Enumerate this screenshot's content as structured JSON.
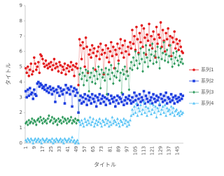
{
  "chart_data": {
    "type": "line",
    "x_label": "タイトル",
    "y_label": "タイトル",
    "ylim": [
      0,
      9
    ],
    "yticks": [
      0,
      1,
      2,
      3,
      4,
      5,
      6,
      7,
      8,
      9
    ],
    "legend": "right",
    "grid": false,
    "categories": [
      "1",
      null,
      null,
      null,
      null,
      null,
      null,
      null,
      "9",
      null,
      null,
      null,
      null,
      null,
      null,
      null,
      "17",
      null,
      null,
      null,
      null,
      null,
      null,
      null,
      "25",
      null,
      null,
      null,
      null,
      null,
      null,
      null,
      "33",
      null,
      null,
      null,
      null,
      null,
      null,
      null,
      "41",
      null,
      null,
      null,
      null,
      null,
      null,
      null,
      "49",
      null,
      null,
      null,
      null,
      null,
      null,
      null,
      "57",
      null,
      null,
      null,
      null,
      null,
      null,
      null,
      "65",
      null,
      null,
      null,
      null,
      null,
      null,
      null,
      "73",
      null,
      null,
      null,
      null,
      null,
      null,
      null,
      "81",
      null,
      null,
      null,
      null,
      null,
      null,
      null,
      "89",
      null,
      null,
      null,
      null,
      null,
      null,
      null,
      "97",
      null,
      null,
      null,
      null,
      null,
      null,
      null,
      "105",
      null,
      null,
      null,
      null,
      null,
      null,
      null,
      "113",
      null,
      null,
      null,
      null,
      null,
      null,
      null,
      "121",
      null,
      null,
      null,
      null,
      null,
      null,
      null,
      "129",
      null,
      null,
      null,
      null,
      null,
      null,
      null,
      "137",
      null,
      null,
      null,
      null,
      null,
      null,
      null,
      "145",
      null,
      null,
      null,
      null,
      null
    ],
    "series": [
      {
        "name": "系列1",
        "color": "#e31a1c",
        "marker": "circle",
        "values": [
          4.9,
          4.6,
          5.0,
          4.4,
          4.8,
          5.2,
          4.5,
          4.7,
          5.6,
          5.2,
          4.8,
          5.0,
          5.3,
          4.6,
          5.8,
          5.7,
          5.5,
          5.2,
          5.0,
          5.4,
          5.1,
          4.9,
          5.2,
          5.0,
          5.3,
          4.8,
          5.1,
          5.5,
          4.9,
          5.2,
          5.0,
          4.7,
          5.3,
          5.1,
          4.6,
          5.0,
          4.8,
          5.2,
          4.5,
          4.9,
          5.1,
          4.7,
          5.0,
          5.3,
          4.8,
          5.1,
          4.4,
          5.0,
          5.2,
          4.9,
          3.8,
          6.8,
          6.4,
          5.5,
          6.6,
          6.2,
          5.0,
          6.9,
          6.3,
          4.6,
          5.8,
          6.1,
          5.6,
          6.4,
          5.9,
          6.2,
          4.8,
          5.7,
          6.0,
          6.3,
          5.5,
          6.5,
          5.8,
          6.1,
          4.5,
          5.9,
          6.4,
          5.6,
          6.2,
          5.3,
          6.0,
          6.6,
          5.7,
          6.3,
          4.9,
          6.1,
          5.8,
          6.5,
          5.4,
          6.2,
          6.8,
          5.9,
          6.4,
          5.6,
          6.7,
          6.0,
          4.7,
          6.3,
          5.8,
          6.6,
          6.2,
          7.4,
          6.5,
          7.0,
          6.1,
          7.6,
          6.8,
          5.9,
          7.2,
          6.6,
          7.7,
          6.3,
          7.5,
          6.9,
          5.8,
          7.1,
          6.7,
          7.8,
          6.4,
          7.0,
          6.2,
          7.3,
          6.8,
          5.6,
          7.6,
          6.5,
          7.1,
          6.9,
          7.9,
          6.3,
          7.4,
          6.7,
          6.0,
          7.2,
          6.8,
          7.5,
          6.4,
          7.0,
          5.7,
          6.9,
          6.6,
          7.3,
          6.2,
          6.8,
          6.5,
          6.1,
          6.7,
          6.3,
          6.0,
          5.9
        ]
      },
      {
        "name": "系列2",
        "color": "#1f3fe0",
        "marker": "square",
        "values": [
          3.4,
          3.0,
          3.5,
          3.1,
          3.6,
          3.2,
          3.3,
          2.9,
          3.5,
          3.2,
          3.1,
          3.9,
          4.0,
          3.7,
          3.9,
          3.8,
          3.6,
          3.7,
          3.5,
          3.8,
          3.4,
          3.6,
          3.3,
          3.7,
          3.5,
          3.2,
          3.6,
          3.4,
          2.7,
          3.5,
          3.3,
          3.7,
          3.1,
          3.6,
          3.4,
          3.2,
          3.5,
          2.6,
          3.8,
          3.3,
          3.6,
          3.5,
          3.2,
          3.7,
          2.4,
          3.4,
          3.6,
          3.1,
          3.5,
          3.3,
          2.0,
          2.8,
          3.1,
          2.6,
          3.0,
          2.7,
          3.2,
          2.9,
          2.5,
          3.1,
          2.8,
          3.0,
          2.6,
          3.2,
          2.9,
          2.7,
          3.1,
          2.4,
          3.0,
          2.8,
          3.2,
          2.6,
          2.9,
          3.1,
          2.7,
          3.0,
          2.5,
          2.9,
          3.2,
          2.8,
          2.6,
          3.1,
          2.9,
          2.7,
          3.0,
          2.4,
          2.8,
          3.1,
          2.6,
          3.0,
          2.9,
          2.7,
          3.2,
          2.5,
          2.8,
          3.0,
          2.6,
          2.9,
          3.1,
          2.8,
          2.6,
          3.0,
          2.7,
          3.3,
          2.8,
          3.1,
          2.5,
          2.9,
          3.2,
          2.7,
          3.0,
          2.8,
          3.4,
          2.6,
          3.1,
          2.9,
          2.7,
          3.3,
          2.8,
          3.0,
          2.6,
          3.2,
          2.9,
          2.7,
          3.1,
          2.8,
          3.0,
          2.5,
          3.2,
          2.9,
          2.7,
          3.1,
          2.8,
          3.3,
          2.6,
          3.0,
          2.9,
          2.7,
          3.2,
          2.8,
          3.0,
          2.6,
          3.1,
          2.9,
          2.7,
          3.0,
          2.8,
          3.2,
          2.9,
          3.1
        ]
      },
      {
        "name": "系列3",
        "color": "#2e9a5c",
        "marker": "diamond",
        "values": [
          1.3,
          1.4,
          1.2,
          1.5,
          1.3,
          1.4,
          1.6,
          1.3,
          1.5,
          1.4,
          1.2,
          1.5,
          1.6,
          1.4,
          1.7,
          1.5,
          1.3,
          1.6,
          1.4,
          1.5,
          1.3,
          1.6,
          1.8,
          1.4,
          1.5,
          1.7,
          1.3,
          1.6,
          1.4,
          1.5,
          1.2,
          1.6,
          1.4,
          1.5,
          1.3,
          1.7,
          1.4,
          1.6,
          1.5,
          1.3,
          1.6,
          1.4,
          1.5,
          1.7,
          1.3,
          1.5,
          1.4,
          1.6,
          1.3,
          1.5,
          1.5,
          4.5,
          4.9,
          4.2,
          4.6,
          3.8,
          4.4,
          4.8,
          4.1,
          4.7,
          3.4,
          4.3,
          4.6,
          4.0,
          4.9,
          4.4,
          3.9,
          4.7,
          4.2,
          5.0,
          4.5,
          3.6,
          4.8,
          4.3,
          4.6,
          4.1,
          4.9,
          3.2,
          4.5,
          4.8,
          4.2,
          5.1,
          4.6,
          3.9,
          4.4,
          4.9,
          4.3,
          4.7,
          5.2,
          4.1,
          4.6,
          3.3,
          4.8,
          4.5,
          5.0,
          4.2,
          4.7,
          4.4,
          3.5,
          4.9,
          5.3,
          4.8,
          5.6,
          5.1,
          6.0,
          5.4,
          4.9,
          5.8,
          5.2,
          6.2,
          5.5,
          4.7,
          5.9,
          5.3,
          6.4,
          5.6,
          5.0,
          6.1,
          5.4,
          5.8,
          6.5,
          5.2,
          5.7,
          6.0,
          5.3,
          6.3,
          5.6,
          4.9,
          6.2,
          5.5,
          5.9,
          6.6,
          5.4,
          5.8,
          6.1,
          5.3,
          5.7,
          6.4,
          5.5,
          5.0,
          5.9,
          5.2,
          5.6,
          6.0,
          5.4,
          5.1,
          5.7,
          5.3,
          5.5,
          5.2
        ]
      },
      {
        "name": "系列4",
        "color": "#5bc4f5",
        "marker": "triangle",
        "values": [
          0.2,
          0.1,
          0.3,
          0.2,
          0.1,
          0.3,
          0.2,
          0.0,
          0.2,
          0.3,
          0.1,
          0.2,
          0.3,
          0.1,
          0.2,
          0.0,
          0.3,
          0.2,
          0.1,
          0.2,
          0.3,
          0.1,
          0.2,
          0.2,
          0.1,
          0.3,
          0.0,
          0.2,
          0.1,
          0.3,
          0.2,
          0.1,
          0.2,
          0.3,
          0.1,
          0.2,
          0.0,
          0.3,
          0.2,
          0.1,
          0.2,
          0.3,
          0.1,
          0.2,
          0.4,
          0.1,
          0.2,
          0.0,
          0.1,
          0.2,
          0.0,
          1.4,
          1.2,
          1.5,
          1.3,
          1.1,
          1.6,
          1.4,
          1.2,
          1.5,
          1.3,
          1.7,
          1.2,
          1.4,
          1.6,
          1.1,
          1.3,
          1.5,
          1.2,
          1.4,
          1.6,
          1.3,
          1.1,
          1.5,
          1.4,
          1.2,
          1.6,
          1.3,
          1.5,
          1.1,
          1.4,
          1.2,
          1.7,
          1.3,
          1.5,
          1.4,
          1.2,
          1.6,
          1.3,
          1.1,
          1.5,
          1.4,
          1.2,
          1.6,
          1.3,
          1.5,
          1.1,
          1.4,
          1.2,
          1.5,
          1.8,
          2.2,
          1.9,
          2.4,
          2.0,
          2.6,
          1.8,
          2.3,
          2.1,
          2.5,
          1.9,
          2.2,
          2.7,
          2.0,
          2.4,
          1.8,
          2.3,
          2.1,
          2.6,
          1.9,
          2.2,
          2.5,
          2.0,
          2.4,
          1.7,
          2.3,
          2.1,
          2.6,
          1.9,
          2.2,
          2.4,
          2.0,
          2.5,
          1.8,
          2.3,
          2.1,
          2.2,
          1.9,
          2.4,
          2.0,
          2.3,
          1.8,
          2.1,
          2.2,
          1.9,
          2.0,
          1.8,
          2.1,
          1.9,
          2.0
        ]
      }
    ]
  }
}
